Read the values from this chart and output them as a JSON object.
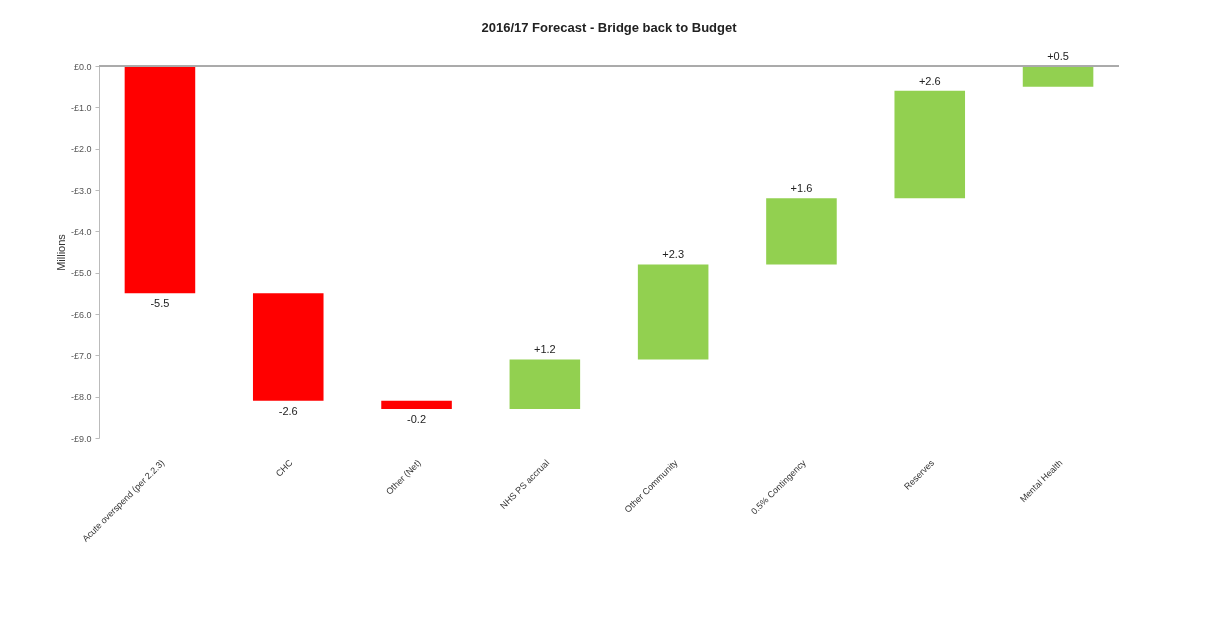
{
  "chart_data": {
    "type": "bar",
    "title": "2016/17 Forecast - Bridge back to Budget",
    "ylabel": "Millions",
    "categories": [
      "Acute overspend (per 2.2.3)",
      "CHC",
      "Other (Net)",
      "NHS PS accrual",
      "Other Community",
      "0.5% Contingency",
      "Reserves",
      "Mental Health"
    ],
    "values": [
      -5.5,
      -2.6,
      -0.2,
      1.2,
      2.3,
      1.6,
      2.6,
      0.5
    ],
    "base": [
      0,
      -5.5,
      -8.1,
      -8.3,
      -7.1,
      -4.8,
      -3.2,
      -0.5
    ],
    "colors": [
      "#ff0000",
      "#ff0000",
      "#ff0000",
      "#92d050",
      "#92d050",
      "#92d050",
      "#92d050",
      "#92d050"
    ],
    "value_labels": [
      "-5.5",
      "-2.6",
      "-0.2",
      "+1.2",
      "+2.3",
      "+1.6",
      "+2.6",
      "+0.5"
    ],
    "ylim": [
      -9,
      0
    ],
    "yticks": [
      {
        "value": 0,
        "label": "£0.0"
      },
      {
        "value": -1,
        "label": "-£1.0"
      },
      {
        "value": -2,
        "label": "-£2.0"
      },
      {
        "value": -3,
        "label": "-£3.0"
      },
      {
        "value": -4,
        "label": "-£4.0"
      },
      {
        "value": -5,
        "label": "-£5.0"
      },
      {
        "value": -6,
        "label": "-£6.0"
      },
      {
        "value": -7,
        "label": "-£7.0"
      },
      {
        "value": -8,
        "label": "-£8.0"
      },
      {
        "value": -9,
        "label": "-£9.0"
      }
    ],
    "grid": false
  }
}
